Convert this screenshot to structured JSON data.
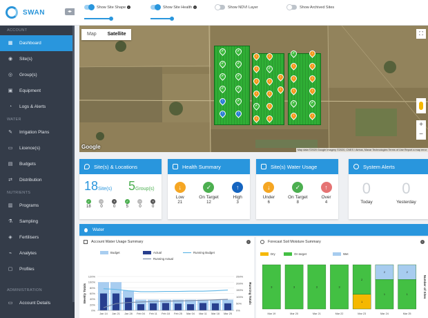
{
  "app": {
    "name": "SWAN"
  },
  "sidebar": {
    "sections": [
      {
        "title": "ACCOUNT",
        "items": [
          {
            "label": "Dashboard",
            "icon": "dashboard-icon",
            "active": true
          },
          {
            "label": "Site(s)",
            "icon": "pin-icon"
          },
          {
            "label": "Group(s)",
            "icon": "group-icon"
          },
          {
            "label": "Equipment",
            "icon": "equipment-icon"
          },
          {
            "label": "Logs & Alerts",
            "icon": "bell-icon"
          }
        ]
      },
      {
        "title": "WATER",
        "items": [
          {
            "label": "Irrigation Plans",
            "icon": "plan-icon"
          },
          {
            "label": "Licence(s)",
            "icon": "licence-icon"
          },
          {
            "label": "Budgets",
            "icon": "budget-icon"
          },
          {
            "label": "Distribution",
            "icon": "distribution-icon"
          }
        ]
      },
      {
        "title": "NUTRIENTS",
        "items": [
          {
            "label": "Programs",
            "icon": "program-icon"
          },
          {
            "label": "Sampling",
            "icon": "flask-icon"
          },
          {
            "label": "Fertilisers",
            "icon": "fertiliser-icon"
          },
          {
            "label": "Analytes",
            "icon": "analyte-icon"
          },
          {
            "label": "Profiles",
            "icon": "profile-icon"
          }
        ]
      },
      {
        "title": "ADMINISTRATION",
        "items": [
          {
            "label": "Account Details",
            "icon": "account-icon"
          }
        ]
      }
    ]
  },
  "toggles": [
    {
      "label": "Show Site Shape",
      "on": true,
      "info": true,
      "slider": 0.75
    },
    {
      "label": "Show Site Health",
      "on": true,
      "info": true,
      "slider": 0.45
    },
    {
      "label": "Show NDVI Layer",
      "on": false,
      "info": false
    },
    {
      "label": "Show Archived Sites",
      "on": false,
      "info": false
    }
  ],
  "map": {
    "tabs": [
      "Map",
      "Satellite"
    ],
    "selected_tab": "Satellite",
    "google_logo": "Google",
    "attribution": "Map data ©2020 Google Imagery ©2020, CNES / Airbus, Maxar Technologies    Terms of Use    Report a map error",
    "zoom_in": "+",
    "zoom_out": "−",
    "fullscreen_icon": "fullscreen-icon"
  },
  "cards": {
    "sites": {
      "title": "Site(s) & Locations",
      "sites_count": "18",
      "sites_label": "Site(s)",
      "groups_count": "5",
      "groups_label": "Group(s)",
      "sites_stats": [
        "18",
        "0",
        "0"
      ],
      "groups_stats": [
        "5",
        "0",
        "0"
      ]
    },
    "health": {
      "title": "Health Summary",
      "items": [
        {
          "label": "Low",
          "value": "21",
          "color": "#f5a623"
        },
        {
          "label": "On Target",
          "value": "12",
          "color": "#4caf50"
        },
        {
          "label": "High",
          "value": "3",
          "color": "#1565c0"
        }
      ]
    },
    "water_usage": {
      "title": "Site(s) Water Usage",
      "items": [
        {
          "label": "Under",
          "value": "6",
          "color": "#f5a623"
        },
        {
          "label": "On Target",
          "value": "8",
          "color": "#4caf50"
        },
        {
          "label": "Over",
          "value": "4",
          "color": "#e57373"
        }
      ]
    },
    "alerts": {
      "title": "System Alerts",
      "items": [
        {
          "label": "Today",
          "value": "0"
        },
        {
          "label": "Yesterday",
          "value": "0"
        }
      ]
    }
  },
  "water_section": {
    "title": "Water"
  },
  "panels": {
    "usage_title": "Account Water Usage Summary",
    "moisture_title": "Forecast Soil Moisture Summary"
  },
  "chart_data": [
    {
      "type": "bar",
      "title": "Account Water Usage Summary",
      "legend": [
        "Budget",
        "Actual",
        "Running Budget",
        "Running Actual"
      ],
      "categories": [
        "Jan 14",
        "Jan 21",
        "Jan 28",
        "Feb 04",
        "Feb 11",
        "Feb 18",
        "Feb 25",
        "Mar 04",
        "Mar 11",
        "Mar 18",
        "Mar 25"
      ],
      "ylabel": "Weekly Totals",
      "y2label": "Running Totals",
      "ylim": [
        0,
        120
      ],
      "y2lim": [
        0,
        250
      ],
      "yticks": [
        "0%",
        "20%",
        "40%",
        "60%",
        "80%",
        "100%",
        "120%"
      ],
      "y2ticks": [
        "0%",
        "50%",
        "100%",
        "150%",
        "200%",
        "250%"
      ],
      "series": [
        {
          "name": "Budget",
          "values": [
            100,
            100,
            70,
            38,
            38,
            38,
            38,
            38,
            38,
            38,
            38
          ]
        },
        {
          "name": "Actual",
          "values": [
            60,
            60,
            45,
            22,
            25,
            26,
            24,
            22,
            26,
            25,
            25
          ]
        },
        {
          "name": "Running Budget",
          "values": [
            160,
            155,
            145,
            138,
            138,
            140,
            140,
            142,
            142,
            145,
            150
          ]
        },
        {
          "name": "Running Actual",
          "values": [
            20,
            50,
            58,
            62,
            65,
            68,
            70,
            72,
            75,
            78,
            82
          ]
        }
      ]
    },
    {
      "type": "bar",
      "title": "Forecast Soil Moisture Summary",
      "legend": [
        "Dry",
        "On target",
        "Wet"
      ],
      "categories": [
        "Mar 19",
        "Mar 20",
        "Mar 21",
        "Mar 22",
        "Mar 23",
        "Mar 24",
        "Mar 25"
      ],
      "ylabel": "Number of Sites",
      "ylim": [
        0,
        3
      ],
      "series": [
        {
          "name": "Dry",
          "values": [
            0,
            0,
            0,
            0,
            1,
            0,
            0
          ]
        },
        {
          "name": "On target",
          "values": [
            3,
            3,
            3,
            3,
            2,
            2,
            2
          ]
        },
        {
          "name": "Wet",
          "values": [
            0,
            0,
            0,
            0,
            0,
            1,
            1
          ]
        }
      ],
      "segment_labels": [
        "3",
        "3",
        "3",
        "3",
        "2",
        "1",
        "2",
        "1",
        "2",
        "1"
      ]
    }
  ]
}
